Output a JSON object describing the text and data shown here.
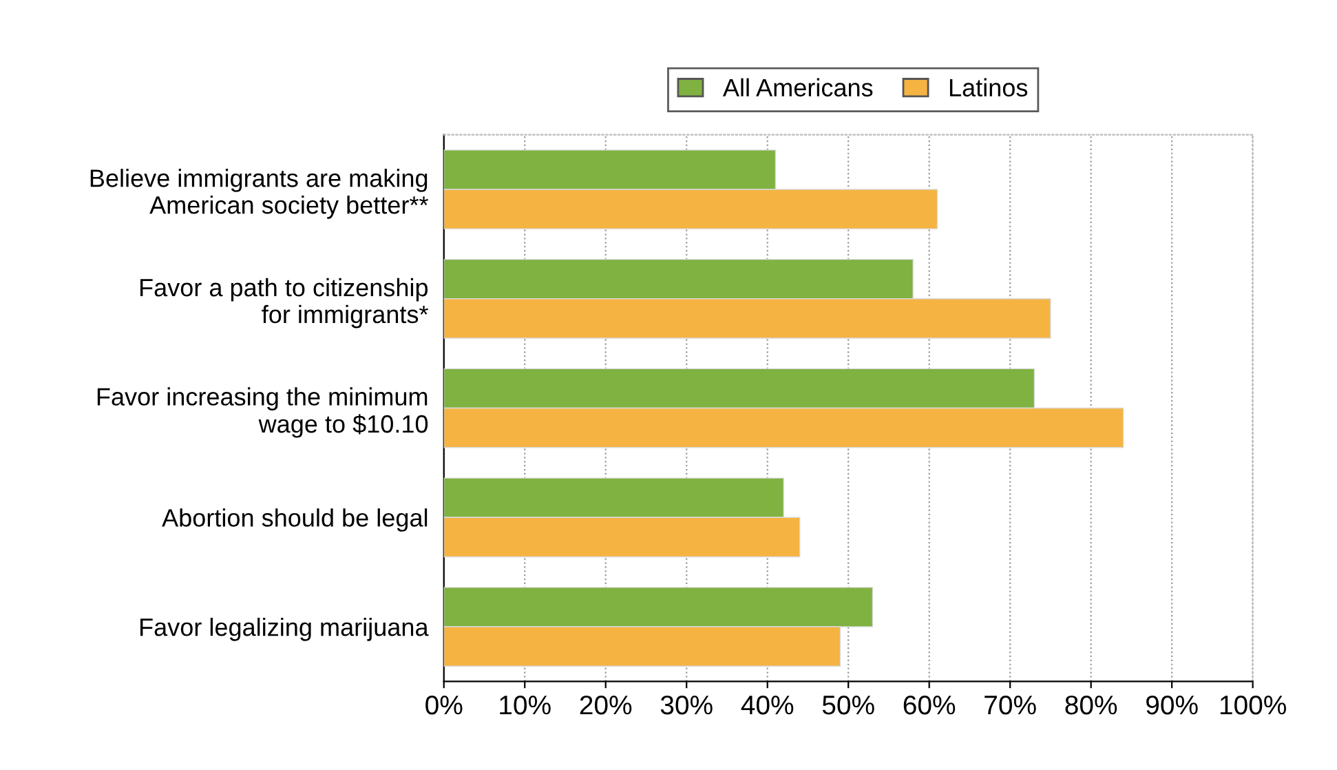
{
  "chart_data": {
    "type": "bar",
    "orientation": "horizontal",
    "categories": [
      "Believe immigrants are making\nAmerican society better**",
      "Favor a path to citizenship\nfor immigrants*",
      "Favor increasing the minimum\nwage to $10.10",
      "Abortion should be legal",
      "Favor legalizing marijuana"
    ],
    "series": [
      {
        "name": "All Americans",
        "color": "#7fb241",
        "values": [
          41,
          58,
          73,
          42,
          53
        ]
      },
      {
        "name": "Latinos",
        "color": "#f5b342",
        "values": [
          61,
          75,
          84,
          44,
          49
        ]
      }
    ],
    "xlim": [
      0,
      100
    ],
    "xticks": [
      {
        "value": 0,
        "label": "0%"
      },
      {
        "value": 10,
        "label": "10%"
      },
      {
        "value": 20,
        "label": "20%"
      },
      {
        "value": 30,
        "label": "30%"
      },
      {
        "value": 40,
        "label": "40%"
      },
      {
        "value": 50,
        "label": "50%"
      },
      {
        "value": 60,
        "label": "60%"
      },
      {
        "value": 70,
        "label": "70%"
      },
      {
        "value": 80,
        "label": "80%"
      },
      {
        "value": 90,
        "label": "90%"
      },
      {
        "value": 100,
        "label": "100%"
      }
    ],
    "grid": "x",
    "legend": "top right"
  }
}
